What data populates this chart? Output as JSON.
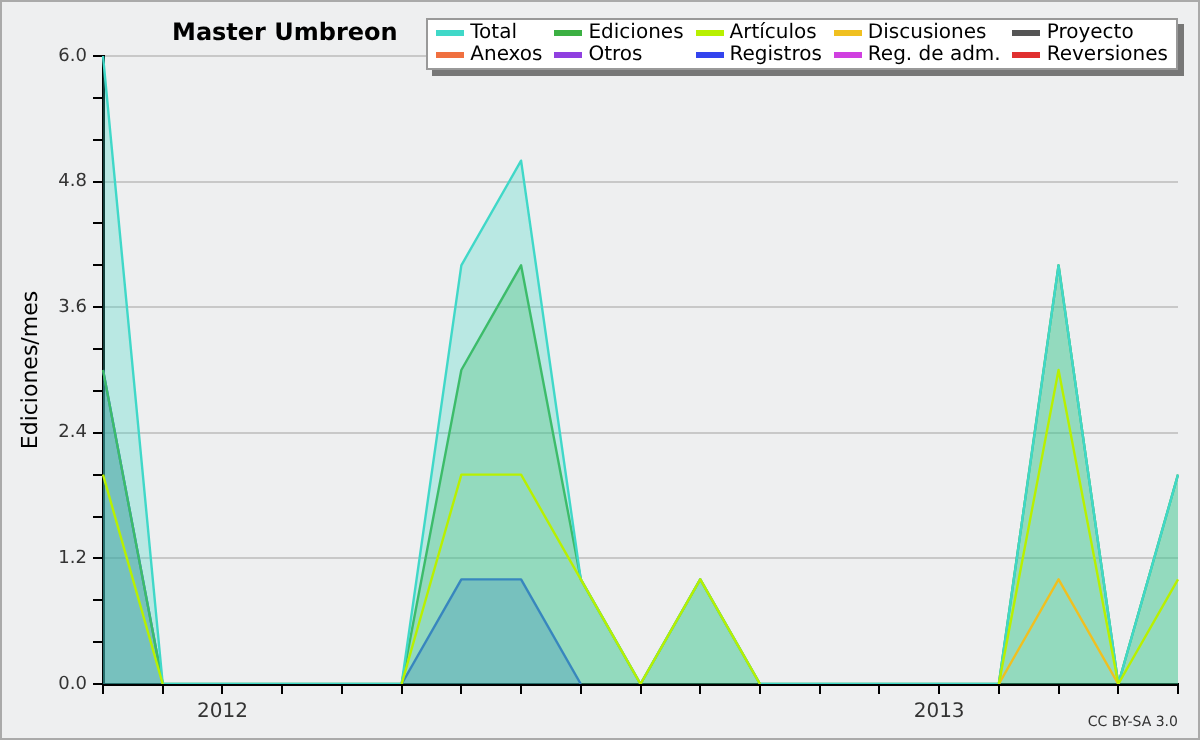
{
  "chart_data": {
    "type": "line",
    "title": "Master Umbreon",
    "ylabel": "Ediciones/mes",
    "annotations": [
      "CC BY-SA 3.0"
    ],
    "categories": [
      null,
      null,
      "2012",
      null,
      null,
      null,
      null,
      null,
      null,
      null,
      null,
      null,
      null,
      null,
      "2013",
      null,
      null,
      null,
      null
    ],
    "ylim": [
      0,
      6
    ],
    "yticks": [
      {
        "value": 0,
        "label": "0.0"
      },
      {
        "value": 0.4,
        "label": null
      },
      {
        "value": 0.8,
        "label": null
      },
      {
        "value": 1.2,
        "label": "1.2"
      },
      {
        "value": 1.6,
        "label": null
      },
      {
        "value": 2,
        "label": null
      },
      {
        "value": 2.4,
        "label": "2.4"
      },
      {
        "value": 2.8,
        "label": null
      },
      {
        "value": 3.2,
        "label": null
      },
      {
        "value": 3.6,
        "label": "3.6"
      },
      {
        "value": 4,
        "label": null
      },
      {
        "value": 4.4,
        "label": null
      },
      {
        "value": 4.8,
        "label": "4.8"
      },
      {
        "value": 5.2,
        "label": null
      },
      {
        "value": 5.6,
        "label": null
      },
      {
        "value": 6,
        "label": "6.0"
      }
    ],
    "grid": "y",
    "legend": "top right",
    "marker": "none",
    "line_style": "solid",
    "series": [
      {
        "name": "Total",
        "type": "area",
        "color": "#40d8c8",
        "values": [
          6,
          0,
          0,
          0,
          0,
          0,
          4,
          5,
          1,
          0,
          1,
          0,
          0,
          0,
          0,
          0,
          4,
          0,
          2
        ]
      },
      {
        "name": "Ediciones",
        "type": "area",
        "color": "#3cb043",
        "values": [
          3,
          0,
          0,
          0,
          0,
          0,
          3,
          4,
          1,
          0,
          1,
          0,
          0,
          0,
          0,
          0,
          4,
          0,
          2
        ]
      },
      {
        "name": "Artículos",
        "type": "line",
        "color": "#b8f000",
        "values": [
          2,
          0,
          null,
          null,
          null,
          0,
          2,
          2,
          1,
          0,
          1,
          0,
          null,
          null,
          null,
          0,
          3,
          0,
          1
        ]
      },
      {
        "name": "Discusiones",
        "type": "line",
        "color": "#f0c020",
        "values": [
          null,
          null,
          null,
          null,
          null,
          null,
          null,
          null,
          null,
          null,
          null,
          null,
          null,
          null,
          null,
          0,
          1,
          0,
          null
        ]
      },
      {
        "name": "Proyecto",
        "type": "line",
        "color": "#555555",
        "values": [
          null,
          null,
          null,
          null,
          null,
          null,
          null,
          null,
          null,
          null,
          null,
          null,
          null,
          null,
          null,
          null,
          null,
          null,
          null
        ]
      },
      {
        "name": "Anexos",
        "type": "line",
        "color": "#f07040",
        "values": [
          null,
          null,
          null,
          null,
          null,
          null,
          null,
          null,
          null,
          null,
          null,
          null,
          null,
          null,
          null,
          null,
          null,
          null,
          null
        ]
      },
      {
        "name": "Otros",
        "type": "line",
        "color": "#9040e0",
        "values": [
          null,
          null,
          null,
          null,
          null,
          null,
          null,
          null,
          null,
          null,
          null,
          null,
          null,
          null,
          null,
          null,
          null,
          null,
          null
        ]
      },
      {
        "name": "Registros",
        "type": "area",
        "color": "#3344ee",
        "values": [
          3,
          0,
          null,
          null,
          null,
          0,
          1,
          1,
          0,
          null,
          null,
          null,
          null,
          null,
          null,
          null,
          null,
          null,
          null
        ]
      },
      {
        "name": "Reg. de adm.",
        "type": "line",
        "color": "#d040e0",
        "values": [
          null,
          null,
          null,
          null,
          null,
          null,
          null,
          null,
          null,
          null,
          null,
          null,
          null,
          null,
          null,
          null,
          null,
          null,
          null
        ]
      },
      {
        "name": "Reversiones",
        "type": "line",
        "color": "#e03030",
        "values": [
          null,
          null,
          null,
          null,
          null,
          null,
          null,
          null,
          null,
          null,
          null,
          null,
          null,
          null,
          null,
          null,
          null,
          null,
          null
        ]
      }
    ]
  }
}
